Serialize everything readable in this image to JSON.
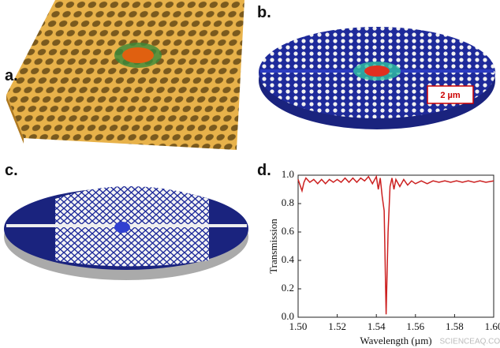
{
  "panels": [
    {
      "label": "a."
    },
    {
      "label": "b.",
      "scale_bar": "2 µm"
    },
    {
      "label": "c."
    },
    {
      "label": "d."
    }
  ],
  "watermark": "SCIENCEAQ.COM",
  "chart_data": {
    "type": "line",
    "xlabel": "Wavelength (µm)",
    "ylabel": "Transmission",
    "color": "#cc2020",
    "x": [
      1.5,
      1.501,
      1.502,
      1.503,
      1.504,
      1.506,
      1.508,
      1.51,
      1.512,
      1.514,
      1.516,
      1.518,
      1.52,
      1.522,
      1.524,
      1.526,
      1.528,
      1.53,
      1.532,
      1.534,
      1.536,
      1.538,
      1.54,
      1.541,
      1.542,
      1.543,
      1.544,
      1.545,
      1.546,
      1.547,
      1.548,
      1.549,
      1.55,
      1.552,
      1.554,
      1.556,
      1.558,
      1.56,
      1.563,
      1.566,
      1.569,
      1.572,
      1.575,
      1.578,
      1.581,
      1.584,
      1.587,
      1.59,
      1.593,
      1.596,
      1.6
    ],
    "values": [
      0.97,
      0.93,
      0.89,
      0.95,
      0.98,
      0.95,
      0.97,
      0.94,
      0.97,
      0.94,
      0.97,
      0.95,
      0.97,
      0.95,
      0.98,
      0.95,
      0.98,
      0.95,
      0.98,
      0.96,
      0.99,
      0.94,
      0.99,
      0.9,
      0.98,
      0.85,
      0.75,
      0.02,
      0.6,
      0.92,
      0.98,
      0.9,
      0.97,
      0.92,
      0.97,
      0.93,
      0.96,
      0.94,
      0.96,
      0.94,
      0.96,
      0.95,
      0.96,
      0.95,
      0.96,
      0.95,
      0.96,
      0.95,
      0.96,
      0.95,
      0.96
    ],
    "xlim": [
      1.5,
      1.6
    ],
    "xticks": [
      {
        "value": 1.5,
        "label": "1.50"
      },
      {
        "value": 1.52,
        "label": "1.52"
      },
      {
        "value": 1.54,
        "label": "1.54"
      },
      {
        "value": 1.56,
        "label": "1.56"
      },
      {
        "value": 1.58,
        "label": "1.58"
      },
      {
        "value": 1.6,
        "label": "1.60"
      }
    ],
    "ylim": [
      0,
      1
    ],
    "yticks": [
      {
        "value": 0,
        "label": "0.0"
      },
      {
        "value": 0.2,
        "label": "0.2"
      },
      {
        "value": 0.4,
        "label": "0.4"
      },
      {
        "value": 0.6,
        "label": "0.6"
      },
      {
        "value": 0.8,
        "label": "0.8"
      },
      {
        "value": 1,
        "label": "1.0"
      }
    ]
  }
}
